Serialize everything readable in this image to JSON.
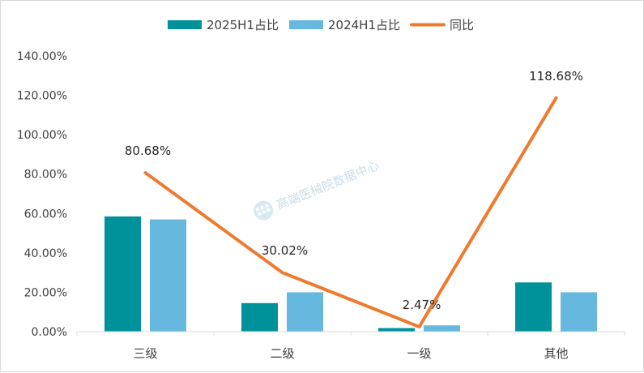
{
  "chart_data": {
    "type": "bar",
    "categories": [
      "三级",
      "二级",
      "一级",
      "其他"
    ],
    "series": [
      {
        "name": "2025H1占比",
        "type": "bar",
        "color": "#00929a",
        "values": [
          58.5,
          14.5,
          1.8,
          25.0
        ]
      },
      {
        "name": "2024H1占比",
        "type": "bar",
        "color": "#67b8de",
        "values": [
          57.0,
          20.0,
          3.2,
          20.0
        ]
      },
      {
        "name": "同比",
        "type": "line",
        "color": "#ee7a2e",
        "values": [
          80.68,
          30.02,
          2.47,
          118.68
        ],
        "labels": [
          "80.68%",
          "30.02%",
          "2.47%",
          "118.68%"
        ]
      }
    ],
    "ylim": [
      0,
      140
    ],
    "yticks": [
      0,
      20,
      40,
      60,
      80,
      100,
      120,
      140
    ],
    "ytick_labels": [
      "0.00%",
      "20.00%",
      "40.00%",
      "60.00%",
      "80.00%",
      "100.00%",
      "120.00%",
      "140.00%"
    ],
    "grid": false,
    "legend": "top-center",
    "title": "",
    "xlabel": "",
    "ylabel": ""
  },
  "watermark": {
    "text": "高端医械院数据中心"
  }
}
